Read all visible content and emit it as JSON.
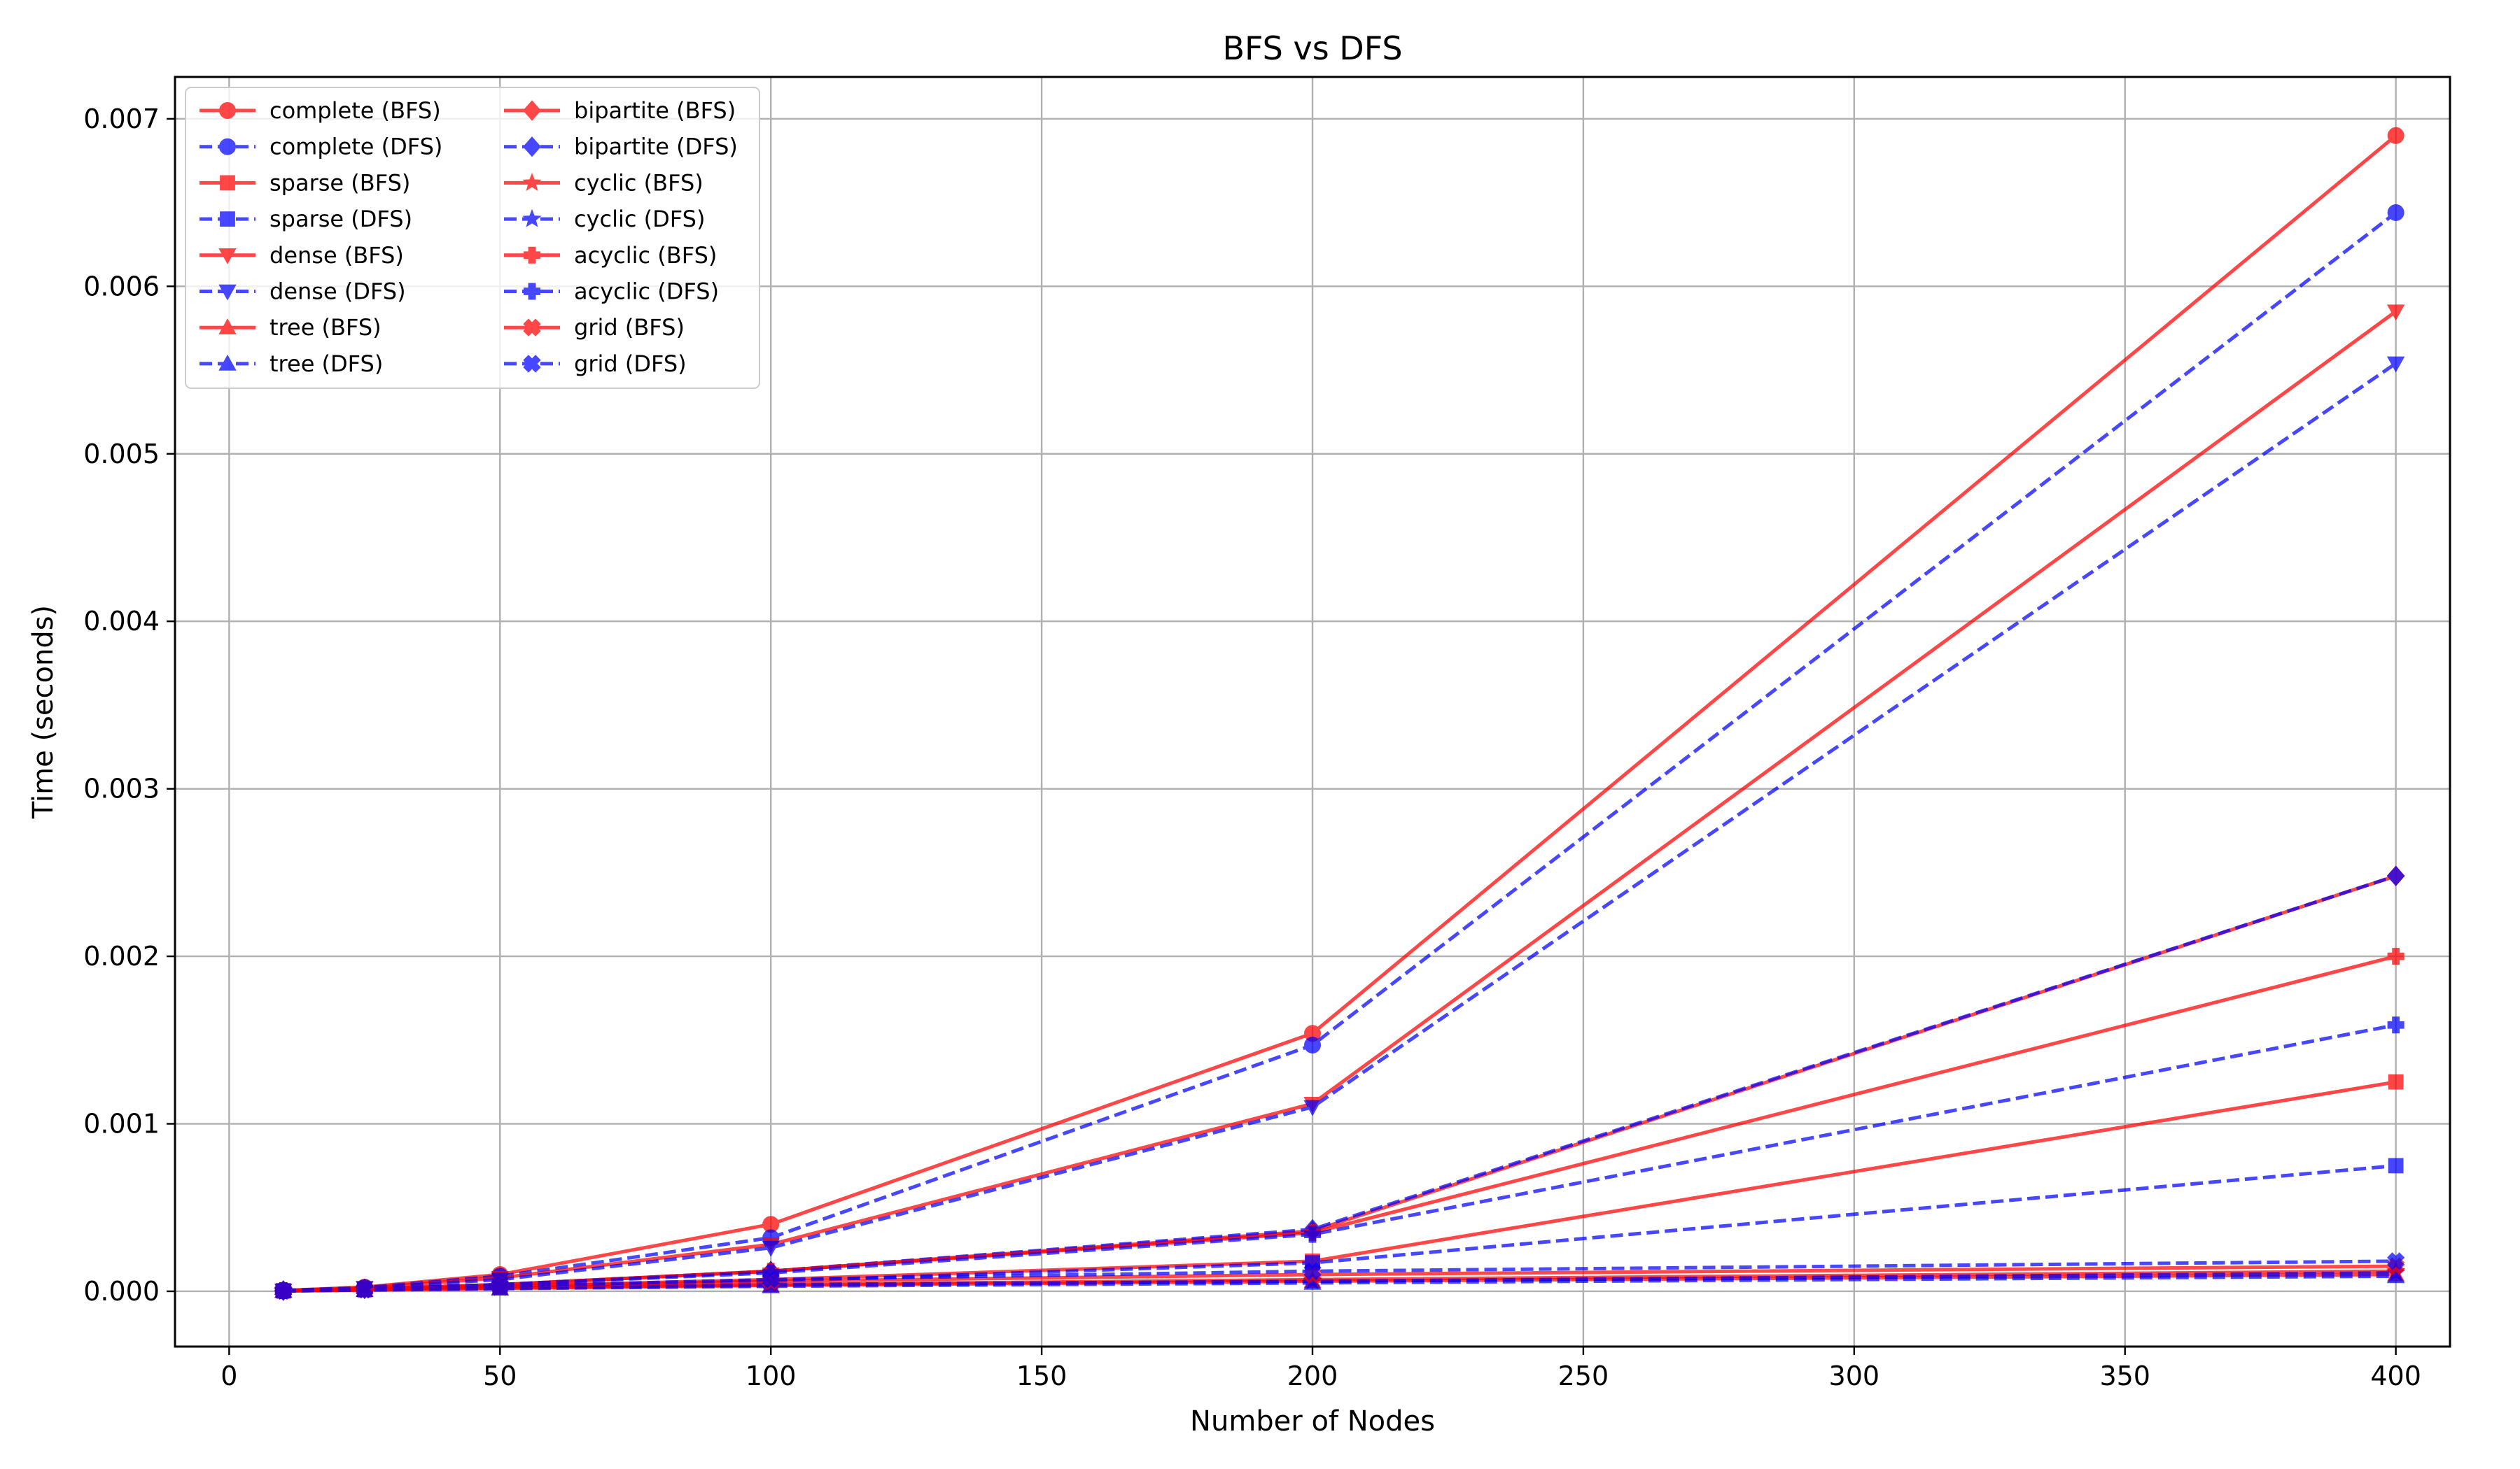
{
  "chart_data": {
    "type": "line",
    "title": "BFS vs DFS",
    "xlabel": "Number of Nodes",
    "ylabel": "Time (seconds)",
    "xlim": [
      -10,
      410
    ],
    "ylim": [
      -0.00033,
      0.00725
    ],
    "xticks": [
      0,
      50,
      100,
      150,
      200,
      250,
      300,
      350,
      400
    ],
    "yticks": [
      0.0,
      0.001,
      0.002,
      0.003,
      0.004,
      0.005,
      0.006,
      0.007
    ],
    "ytick_labels": [
      "0.000",
      "0.001",
      "0.002",
      "0.003",
      "0.004",
      "0.005",
      "0.006",
      "0.007"
    ],
    "grid": true,
    "legend": {
      "placement": "top-left",
      "columns": 2
    },
    "colors": {
      "bfs": "#ff0000",
      "dfs": "#0000ff"
    },
    "x": [
      10,
      25,
      50,
      100,
      200,
      400
    ],
    "series": [
      {
        "name": "complete (BFS)",
        "style": "solid",
        "color": "#ff0000",
        "marker": "circle",
        "values": [
          5e-06,
          2.5e-05,
          0.0001,
          0.0004,
          0.00154,
          0.0069
        ]
      },
      {
        "name": "complete (DFS)",
        "style": "dashed",
        "color": "#0000ff",
        "marker": "circle",
        "values": [
          5e-06,
          2.2e-05,
          9e-05,
          0.00032,
          0.00147,
          0.00644
        ]
      },
      {
        "name": "sparse (BFS)",
        "style": "solid",
        "color": "#ff0000",
        "marker": "square",
        "values": [
          3e-06,
          1.2e-05,
          3e-05,
          7e-05,
          0.00018,
          0.00125
        ]
      },
      {
        "name": "sparse (DFS)",
        "style": "dashed",
        "color": "#0000ff",
        "marker": "square",
        "values": [
          3e-06,
          1e-05,
          2.5e-05,
          6e-05,
          0.00017,
          0.00075
        ]
      },
      {
        "name": "dense (BFS)",
        "style": "solid",
        "color": "#ff0000",
        "marker": "triangle-down",
        "values": [
          4e-06,
          2e-05,
          8e-05,
          0.00028,
          0.00112,
          0.00585
        ]
      },
      {
        "name": "dense (DFS)",
        "style": "dashed",
        "color": "#0000ff",
        "marker": "triangle-down",
        "values": [
          4e-06,
          2e-05,
          7e-05,
          0.00026,
          0.0011,
          0.00554
        ]
      },
      {
        "name": "tree (BFS)",
        "style": "solid",
        "color": "#ff0000",
        "marker": "triangle-up",
        "values": [
          2e-06,
          8e-06,
          1.8e-05,
          3.5e-05,
          6e-05,
          0.0001
        ]
      },
      {
        "name": "tree (DFS)",
        "style": "dashed",
        "color": "#0000ff",
        "marker": "triangle-up",
        "values": [
          2e-06,
          7e-06,
          1.6e-05,
          3e-05,
          5e-05,
          9e-05
        ]
      },
      {
        "name": "bipartite (BFS)",
        "style": "solid",
        "color": "#ff0000",
        "marker": "diamond",
        "values": [
          4e-06,
          1.5e-05,
          4e-05,
          0.00012,
          0.00036,
          0.00248
        ]
      },
      {
        "name": "bipartite (DFS)",
        "style": "dashed",
        "color": "#0000ff",
        "marker": "diamond",
        "values": [
          4e-06,
          1.5e-05,
          4e-05,
          0.00012,
          0.00037,
          0.00248
        ]
      },
      {
        "name": "cyclic (BFS)",
        "style": "solid",
        "color": "#ff0000",
        "marker": "star",
        "values": [
          2e-06,
          8e-06,
          2e-05,
          4e-05,
          7e-05,
          0.00012
        ]
      },
      {
        "name": "cyclic (DFS)",
        "style": "dashed",
        "color": "#0000ff",
        "marker": "star",
        "values": [
          2e-06,
          8e-06,
          2e-05,
          4e-05,
          6e-05,
          0.00011
        ]
      },
      {
        "name": "acyclic (BFS)",
        "style": "solid",
        "color": "#ff0000",
        "marker": "plus",
        "values": [
          4e-06,
          1.5e-05,
          4e-05,
          0.00012,
          0.00035,
          0.002
        ]
      },
      {
        "name": "acyclic (DFS)",
        "style": "dashed",
        "color": "#0000ff",
        "marker": "plus",
        "values": [
          4e-06,
          1.5e-05,
          4e-05,
          0.00011,
          0.00034,
          0.00159
        ]
      },
      {
        "name": "grid (BFS)",
        "style": "solid",
        "color": "#ff0000",
        "marker": "x",
        "values": [
          3e-06,
          1e-05,
          3e-05,
          6e-05,
          0.0001,
          0.00015
        ]
      },
      {
        "name": "grid (DFS)",
        "style": "dashed",
        "color": "#0000ff",
        "marker": "x",
        "values": [
          3e-06,
          1e-05,
          3e-05,
          7e-05,
          0.00012,
          0.00018
        ]
      }
    ]
  }
}
